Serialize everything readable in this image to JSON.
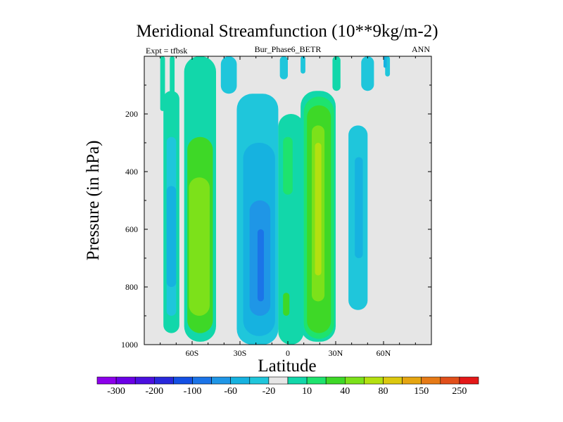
{
  "header": {
    "title": "Meridional Streamfunction (10**9kg/m-2)",
    "experiment": "Expt = tfbsk",
    "case": "Bur_Phase6_BETR",
    "season": "ANN"
  },
  "chart_data": {
    "type": "contour",
    "title": "Meridional Streamfunction (10**9kg/m-2)",
    "subtitle": "Bur_Phase6_BETR",
    "xlabel": "Latitude",
    "ylabel": "Pressure (in hPa)",
    "xlim": [
      -90,
      90
    ],
    "ylim": [
      1000,
      0
    ],
    "y_reversed": true,
    "x_ticks": [
      {
        "value": -60,
        "label": "60S"
      },
      {
        "value": -30,
        "label": "30S"
      },
      {
        "value": 0,
        "label": "0"
      },
      {
        "value": 30,
        "label": "30N"
      },
      {
        "value": 60,
        "label": "60N"
      }
    ],
    "y_ticks": [
      {
        "value": 200,
        "label": "200"
      },
      {
        "value": 400,
        "label": "400"
      },
      {
        "value": 600,
        "label": "600"
      },
      {
        "value": 800,
        "label": "800"
      },
      {
        "value": 1000,
        "label": "1000"
      }
    ],
    "colorbar": {
      "boundaries": [
        -300,
        -250,
        -200,
        -150,
        -100,
        -80,
        -60,
        -40,
        -20,
        -10,
        10,
        20,
        40,
        60,
        80,
        100,
        150,
        200,
        250,
        300
      ],
      "labels": [
        "-300",
        "-200",
        "-100",
        "-60",
        "-20",
        "10",
        "40",
        "80",
        "150",
        "250"
      ],
      "colors": [
        "#8C00EB",
        "#6A00E6",
        "#4B10DF",
        "#2828DB",
        "#1450E4",
        "#1B74E8",
        "#1F96E6",
        "#16B2E0",
        "#1FC6DB",
        "#E6E6E6",
        "#12D7AA",
        "#1EE36E",
        "#3ED827",
        "#7CE11A",
        "#B4E010",
        "#DCC80F",
        "#E5A511",
        "#E67A16",
        "#E14F1A",
        "#E41818"
      ]
    },
    "cells": [
      {
        "lat": [
          -80,
          -77
        ],
        "p": [
          0,
          190
        ],
        "level": 10
      },
      {
        "lat": [
          -74,
          -71
        ],
        "p": [
          0,
          170
        ],
        "level": 10
      },
      {
        "lat": [
          -78,
          -68
        ],
        "p": [
          120,
          960
        ],
        "level": 10
      },
      {
        "lat": [
          -76,
          -70
        ],
        "p": [
          280,
          900
        ],
        "level": -20
      },
      {
        "lat": [
          -76,
          -70
        ],
        "p": [
          450,
          800
        ],
        "level": -40
      },
      {
        "lat": [
          -65,
          -45
        ],
        "p": [
          0,
          990
        ],
        "level": 10
      },
      {
        "lat": [
          -63,
          -47
        ],
        "p": [
          280,
          960
        ],
        "level": 40
      },
      {
        "lat": [
          -62,
          -49
        ],
        "p": [
          420,
          900
        ],
        "level": 60
      },
      {
        "lat": [
          -42,
          -32
        ],
        "p": [
          0,
          130
        ],
        "level": -20
      },
      {
        "lat": [
          -32,
          -6
        ],
        "p": [
          130,
          1000
        ],
        "level": -20
      },
      {
        "lat": [
          -28,
          -8
        ],
        "p": [
          300,
          970
        ],
        "level": -40
      },
      {
        "lat": [
          -24,
          -11
        ],
        "p": [
          500,
          900
        ],
        "level": -60
      },
      {
        "lat": [
          -19,
          -15
        ],
        "p": [
          600,
          850
        ],
        "level": -80
      },
      {
        "lat": [
          -5,
          0
        ],
        "p": [
          0,
          80
        ],
        "level": -20
      },
      {
        "lat": [
          -6,
          10
        ],
        "p": [
          200,
          1000
        ],
        "level": 10
      },
      {
        "lat": [
          -3,
          3
        ],
        "p": [
          280,
          480
        ],
        "level": 20
      },
      {
        "lat": [
          -3,
          1
        ],
        "p": [
          820,
          900
        ],
        "level": 40
      },
      {
        "lat": [
          8,
          11
        ],
        "p": [
          0,
          60
        ],
        "level": -20
      },
      {
        "lat": [
          8,
          30
        ],
        "p": [
          120,
          990
        ],
        "level": 10
      },
      {
        "lat": [
          10,
          29
        ],
        "p": [
          140,
          980
        ],
        "level": 20
      },
      {
        "lat": [
          12,
          27
        ],
        "p": [
          170,
          960
        ],
        "level": 40
      },
      {
        "lat": [
          15,
          23
        ],
        "p": [
          240,
          850
        ],
        "level": 60
      },
      {
        "lat": [
          17,
          21
        ],
        "p": [
          300,
          760
        ],
        "level": 80
      },
      {
        "lat": [
          28,
          33
        ],
        "p": [
          0,
          120
        ],
        "level": 10
      },
      {
        "lat": [
          35,
          52
        ],
        "p": [
          160,
          880
        ],
        "level": -10
      },
      {
        "lat": [
          38,
          50
        ],
        "p": [
          240,
          880
        ],
        "level": -20
      },
      {
        "lat": [
          42,
          47
        ],
        "p": [
          350,
          700
        ],
        "level": -40
      },
      {
        "lat": [
          46,
          54
        ],
        "p": [
          0,
          120
        ],
        "level": -20
      },
      {
        "lat": [
          61,
          64
        ],
        "p": [
          0,
          70
        ],
        "level": -20
      },
      {
        "lat": [
          60,
          62
        ],
        "p": [
          0,
          40
        ],
        "level": -40
      }
    ]
  }
}
